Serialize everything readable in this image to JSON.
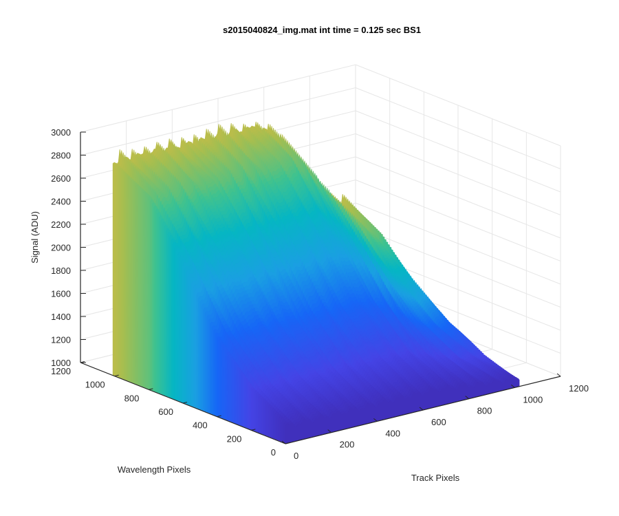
{
  "chart_data": {
    "type": "surface",
    "title": "s2015040824_img.mat int time = 0.125 sec   BS1",
    "zlabel": "Signal (ADU)",
    "ylabel": "Wavelength Pixels",
    "xlabel": "Track Pixels",
    "zlim": [
      1000,
      3000
    ],
    "z_ticks": [
      1000,
      1200,
      1400,
      1600,
      1800,
      2000,
      2200,
      2400,
      2600,
      2800,
      3000
    ],
    "track_lim": [
      0,
      1200
    ],
    "track_ticks": [
      0,
      200,
      400,
      600,
      800,
      1000,
      1200
    ],
    "wavelength_lim": [
      0,
      1200
    ],
    "wavelength_ticks": [
      0,
      200,
      400,
      600,
      800,
      1000,
      1200
    ],
    "grid": true,
    "colormap": "parula",
    "surface_profile": {
      "description": "Signal rises with wavelength pixel, highest near wavelength 1000, falls off toward high track pixels",
      "wavelength": [
        0,
        200,
        400,
        600,
        800,
        1000
      ],
      "peak_signal_track_0_to_600": [
        1150,
        1350,
        1700,
        2200,
        2650,
        2850
      ],
      "signal_at_track_1000_by_wavelength": [
        1080,
        1150,
        1300,
        1550,
        1850,
        2000
      ]
    }
  }
}
